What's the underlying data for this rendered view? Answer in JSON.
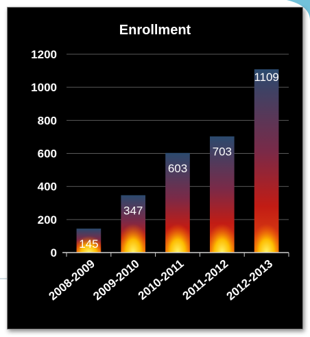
{
  "chart_data": {
    "type": "bar",
    "title": "Enrollment",
    "xlabel": "",
    "ylabel": "",
    "categories": [
      "2008-2009",
      "2009-2010",
      "2010-2011",
      "2011-2012",
      "2012-2013"
    ],
    "values": [
      145,
      347,
      603,
      703,
      1109
    ],
    "data_labels": [
      "145",
      "347",
      "603",
      "703",
      "1109"
    ],
    "ylim": [
      0,
      1200
    ],
    "yticks": [
      0,
      200,
      400,
      600,
      800,
      1000,
      1200
    ],
    "ytick_labels": [
      "0",
      "200",
      "400",
      "600",
      "800",
      "1000",
      "1200"
    ],
    "grid": true,
    "legend": "none",
    "colors": {
      "background": "#000000",
      "bar_top": "#2b4a6e",
      "bar_mid": "#b81818",
      "bar_bottom": "#ffe000",
      "gridline": "#5a5a5a",
      "text": "#ffffff",
      "decoration": "#3fa9c8"
    }
  }
}
